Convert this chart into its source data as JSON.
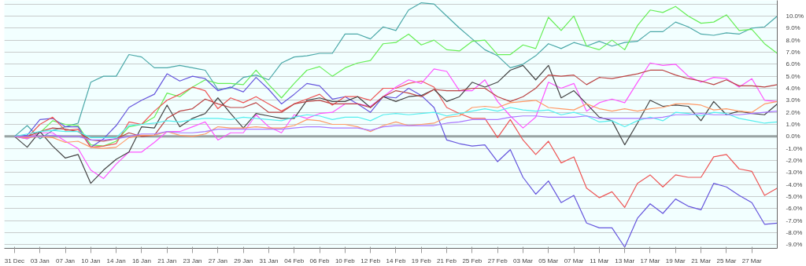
{
  "chart_data": {
    "type": "line",
    "categories": [
      "31 Dec",
      null,
      "03 Jan",
      null,
      "07 Jan",
      null,
      "10 Jan",
      null,
      "14 Jan",
      null,
      "16 Jan",
      null,
      "21 Jan",
      null,
      "23 Jan",
      null,
      "27 Jan",
      null,
      "29 Jan",
      null,
      "31 Jan",
      null,
      "04 Feb",
      null,
      "06 Feb",
      null,
      "10 Feb",
      null,
      "12 Feb",
      null,
      "14 Feb",
      null,
      "19 Feb",
      null,
      "21 Feb",
      null,
      "25 Feb",
      null,
      "27 Feb",
      null,
      "03 Mar",
      null,
      "05 Mar",
      null,
      "07 Mar",
      null,
      "11 Mar",
      null,
      "13 Mar",
      null,
      "17 Mar",
      null,
      "19 Mar",
      null,
      "21 Mar",
      null,
      "25 Mar",
      null,
      "27 Mar",
      null,
      null
    ],
    "series": [
      {
        "color": "#4aa8a8",
        "values": [
          0,
          0.9,
          -0.2,
          0.5,
          0.8,
          1.1,
          4.5,
          5.0,
          5.0,
          6.8,
          6.6,
          5.7,
          5.7,
          5.9,
          5.7,
          5.5,
          3.9,
          4.0,
          4.9,
          5.1,
          4.7,
          6.1,
          6.6,
          6.7,
          6.9,
          6.9,
          8.5,
          8.5,
          8.1,
          9.1,
          8.8,
          10.5,
          11.1,
          11.0,
          10.0,
          9.0,
          8.1,
          7.2,
          6.7,
          5.7,
          6.0,
          6.7,
          7.7,
          7.3,
          7.8,
          7.5,
          7.9,
          7.5,
          7.8,
          7.9,
          8.7,
          8.7,
          9.5,
          9.1,
          8.5,
          8.4,
          8.6,
          8.5,
          9.0,
          9.1,
          10.0
        ]
      },
      {
        "color": "#66ee55",
        "values": [
          0,
          -0.2,
          0.3,
          1.3,
          1.0,
          0.9,
          -0.7,
          -0.8,
          -0.4,
          0.8,
          1.0,
          1.6,
          3.6,
          3.3,
          4.1,
          4.7,
          4.4,
          4.4,
          4.3,
          5.5,
          4.3,
          3.2,
          4.4,
          5.5,
          5.8,
          5.0,
          5.7,
          6.1,
          6.3,
          7.7,
          7.8,
          8.5,
          7.6,
          8.0,
          7.2,
          7.1,
          7.9,
          8.0,
          6.8,
          6.8,
          7.6,
          7.3,
          9.9,
          8.8,
          10.0,
          7.5,
          7.2,
          8.0,
          7.2,
          9.2,
          10.5,
          10.3,
          10.8,
          10.0,
          9.4,
          9.5,
          10.1,
          8.8,
          8.9,
          7.7,
          6.9
        ]
      },
      {
        "color": "#6655dd",
        "values": [
          0,
          0.1,
          1.4,
          1.5,
          0.8,
          0.8,
          -0.9,
          -0.2,
          0.9,
          2.4,
          3.0,
          3.5,
          5.2,
          4.6,
          5.0,
          4.8,
          3.8,
          4.1,
          3.7,
          4.9,
          3.9,
          2.7,
          3.5,
          4.4,
          4.2,
          3.1,
          3.3,
          2.7,
          2.0,
          3.3,
          3.2,
          4.0,
          3.4,
          2.4,
          -0.3,
          -0.6,
          -0.8,
          -0.7,
          -2.1,
          -1.1,
          -3.4,
          -4.8,
          -3.7,
          -5.5,
          -4.9,
          -7.2,
          -7.6,
          -7.6,
          -9.2,
          -6.8,
          -5.6,
          -6.4,
          -5.2,
          -5.8,
          -6.1,
          -3.9,
          -4.2,
          -4.9,
          -5.5,
          -7.3,
          -7.2
        ]
      },
      {
        "color": "#ee5555",
        "values": [
          0,
          -0.1,
          1.0,
          1.6,
          0.5,
          0.6,
          -0.9,
          -0.8,
          -0.6,
          1.2,
          1.0,
          2.1,
          3.0,
          3.5,
          4.1,
          3.8,
          2.3,
          3.2,
          2.8,
          3.3,
          2.7,
          2.1,
          2.7,
          3.1,
          3.5,
          2.6,
          3.3,
          3.3,
          3.0,
          4.0,
          4.0,
          4.4,
          4.6,
          4.1,
          2.4,
          1.9,
          1.5,
          1.5,
          -0.1,
          1.4,
          -0.3,
          -1.5,
          -0.4,
          -2.2,
          -1.7,
          -4.3,
          -5.1,
          -4.6,
          -5.9,
          -3.9,
          -3.2,
          -4.2,
          -3.2,
          -3.4,
          -3.4,
          -1.7,
          -1.5,
          -2.7,
          -2.9,
          -4.9,
          -4.3
        ]
      },
      {
        "color": "#ff55ff",
        "values": [
          0,
          -0.2,
          0.3,
          0.3,
          -0.4,
          -1.0,
          -2.8,
          -3.5,
          -2.3,
          -1.3,
          -1.3,
          -0.5,
          0.4,
          0.4,
          0.8,
          1.2,
          -0.3,
          0.3,
          0.3,
          1.8,
          0.8,
          0.3,
          1.8,
          1.5,
          1.9,
          2.0,
          2.7,
          2.7,
          2.5,
          3.3,
          4.1,
          4.7,
          4.4,
          5.6,
          5.4,
          3.8,
          3.8,
          4.7,
          2.9,
          1.7,
          0.7,
          1.6,
          4.5,
          4.0,
          4.4,
          2.1,
          2.8,
          3.1,
          2.8,
          4.5,
          6.1,
          5.9,
          6.0,
          5.0,
          4.5,
          4.9,
          4.8,
          4.1,
          4.8,
          3.0,
          2.9
        ]
      },
      {
        "color": "#444444",
        "values": [
          0,
          -0.9,
          0.4,
          -0.8,
          -1.8,
          -1.5,
          -3.9,
          -2.8,
          -1.9,
          -1.3,
          0.8,
          0.7,
          2.6,
          0.8,
          1.5,
          1.9,
          3.2,
          1.9,
          0.7,
          1.9,
          1.7,
          1.5,
          1.5,
          3.0,
          3.2,
          2.9,
          2.9,
          3.3,
          2.4,
          3.3,
          2.9,
          3.3,
          3.4,
          3.9,
          2.9,
          3.3,
          4.5,
          4.1,
          4.5,
          5.5,
          5.9,
          4.7,
          5.9,
          3.2,
          3.8,
          2.7,
          1.6,
          1.3,
          -0.7,
          1.1,
          3.0,
          2.5,
          2.6,
          2.5,
          1.3,
          2.9,
          1.8,
          2.1,
          1.9,
          1.8,
          2.7
        ]
      },
      {
        "color": "#bb4444",
        "values": [
          0,
          0,
          0.4,
          0.7,
          0.6,
          0.4,
          -0.3,
          -0.4,
          -0.2,
          0.3,
          0.0,
          0.1,
          1.5,
          2.1,
          2.3,
          3.1,
          2.7,
          2.4,
          2.4,
          2.8,
          2.0,
          2.0,
          2.7,
          2.9,
          3.0,
          2.7,
          2.7,
          2.7,
          2.4,
          3.3,
          3.8,
          3.6,
          3.3,
          3.9,
          3.8,
          3.8,
          4.0,
          4.0,
          3.3,
          2.9,
          3.3,
          4.0,
          5.1,
          5.0,
          5.1,
          4.3,
          4.9,
          4.8,
          5.0,
          5.2,
          5.5,
          5.5,
          5.1,
          4.8,
          4.6,
          4.3,
          4.7,
          4.2,
          4.2,
          4.1,
          4.3
        ]
      },
      {
        "color": "#ff9966",
        "values": [
          0,
          -0.1,
          0.0,
          -0.1,
          -0.5,
          -0.4,
          -0.9,
          -1.0,
          -0.9,
          -0.1,
          0.1,
          0.1,
          0.4,
          0.1,
          0.0,
          0.2,
          0.8,
          0.7,
          0.7,
          0.8,
          0.7,
          0.7,
          0.9,
          1.4,
          1.3,
          1.0,
          1.0,
          0.8,
          0.4,
          0.9,
          1.2,
          0.9,
          1.0,
          1.1,
          1.6,
          1.7,
          2.4,
          2.5,
          2.4,
          2.8,
          2.9,
          3.0,
          2.4,
          2.3,
          2.2,
          2.7,
          2.3,
          2.1,
          2.3,
          2.1,
          2.3,
          2.4,
          2.7,
          2.7,
          2.6,
          2.2,
          2.3,
          2.1,
          2.0,
          2.7,
          2.9
        ]
      },
      {
        "color": "#55eeee",
        "values": [
          0,
          0.2,
          0.4,
          0.5,
          0.4,
          0.4,
          -0.1,
          -0.1,
          -0.1,
          0.9,
          1.0,
          1.1,
          1.3,
          1.2,
          1.4,
          1.5,
          1.5,
          1.4,
          1.6,
          1.5,
          1.4,
          1.3,
          1.6,
          1.8,
          1.7,
          1.4,
          1.6,
          1.6,
          1.3,
          1.8,
          1.9,
          1.8,
          1.9,
          2.0,
          1.7,
          1.9,
          2.1,
          2.3,
          2.1,
          2.4,
          2.2,
          2.1,
          2.2,
          1.8,
          2.0,
          1.7,
          1.2,
          1.3,
          0.8,
          1.3,
          1.6,
          1.3,
          2.0,
          1.9,
          1.7,
          2.0,
          1.9,
          1.5,
          1.3,
          1.1,
          1.2
        ]
      },
      {
        "color": "#aa77ff",
        "values": [
          0,
          0,
          0.0,
          0.1,
          0.0,
          0.0,
          -0.3,
          -0.3,
          -0.2,
          0.0,
          0.2,
          0.2,
          0.4,
          0.3,
          0.3,
          0.4,
          0.6,
          0.6,
          0.6,
          0.6,
          0.6,
          0.6,
          0.7,
          0.8,
          0.8,
          0.7,
          0.7,
          0.7,
          0.5,
          0.8,
          0.9,
          0.9,
          0.9,
          0.9,
          1.1,
          1.2,
          1.4,
          1.4,
          1.4,
          1.6,
          1.7,
          1.7,
          1.6,
          1.6,
          1.6,
          1.7,
          1.5,
          1.5,
          1.5,
          1.5,
          1.5,
          1.6,
          1.8,
          1.8,
          1.9,
          1.8,
          1.8,
          1.8,
          1.9,
          2.0,
          2.1
        ]
      }
    ],
    "ylim": [
      -9.3,
      11.3
    ],
    "yticks": [
      {
        "value": -9,
        "label": "-9.0%"
      },
      {
        "value": -8,
        "label": "-8.0%"
      },
      {
        "value": -7,
        "label": "-7.0%"
      },
      {
        "value": -6,
        "label": "-6.0%"
      },
      {
        "value": -5,
        "label": "-5.0%"
      },
      {
        "value": -4,
        "label": "-4.0%"
      },
      {
        "value": -3,
        "label": "-3.0%"
      },
      {
        "value": -2,
        "label": "-2.0%"
      },
      {
        "value": -1,
        "label": "-1.0%"
      },
      {
        "value": 0,
        "label": "0.0%"
      },
      {
        "value": 1,
        "label": "1.0%"
      },
      {
        "value": 2,
        "label": "2.0%"
      },
      {
        "value": 3,
        "label": "3.0%"
      },
      {
        "value": 4,
        "label": "4.0%"
      },
      {
        "value": 5,
        "label": "5.0%"
      },
      {
        "value": 6,
        "label": "6.0%"
      },
      {
        "value": 7,
        "label": "7.0%"
      },
      {
        "value": 8,
        "label": "8.0%"
      },
      {
        "value": 9,
        "label": "9.0%"
      },
      {
        "value": 10,
        "label": "10.0%"
      },
      {
        "value": 11,
        "label": null
      }
    ],
    "ref_lines": [
      {
        "axis": "y",
        "value": 0,
        "color": "#99a3a3"
      }
    ],
    "grid": "y"
  }
}
